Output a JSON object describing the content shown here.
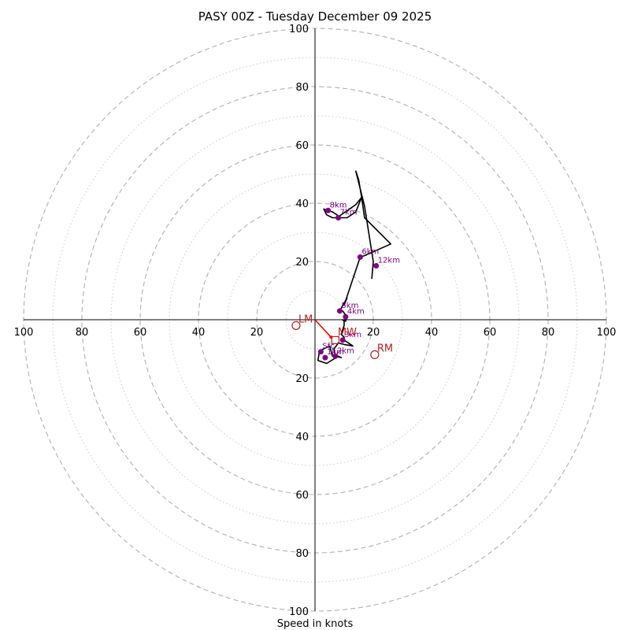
{
  "chart_data": {
    "type": "hodograph",
    "title": "PASY 00Z - Tuesday December 09 2025",
    "xlabel": "Speed in knots",
    "range": 100,
    "ring_major": [
      20,
      40,
      60,
      80,
      100
    ],
    "ring_minor": [
      10,
      30,
      50,
      70,
      90
    ],
    "tick_labels": [
      "20",
      "40",
      "60",
      "80",
      "100"
    ],
    "colors": {
      "trace": "#000000",
      "height_marker": "#800080",
      "storm_motion": "#b22222",
      "mean_wind_vector": "#ff0000",
      "ring": "#b0b0b0",
      "axis": "#000000"
    },
    "trace": [
      [
        8,
        -12.5
      ],
      [
        4,
        -15
      ],
      [
        1,
        -14
      ],
      [
        1.5,
        -11
      ],
      [
        2,
        -10.5
      ],
      [
        5,
        -9
      ],
      [
        6,
        -12.5
      ],
      [
        8,
        -12.5
      ],
      [
        9,
        -13
      ],
      [
        7,
        -12.5
      ],
      [
        6.5,
        -10
      ],
      [
        8,
        -8
      ],
      [
        10,
        -8.5
      ],
      [
        13,
        -9
      ],
      [
        10,
        -7
      ],
      [
        10,
        -6
      ],
      [
        9,
        -5
      ],
      [
        10,
        -2
      ],
      [
        10,
        -0.5
      ],
      [
        9.5,
        0
      ],
      [
        10.5,
        -0.5
      ],
      [
        11,
        1
      ],
      [
        9.5,
        3
      ],
      [
        8.5,
        3
      ],
      [
        9,
        4
      ],
      [
        11,
        7.5
      ],
      [
        10,
        5
      ],
      [
        11,
        8
      ],
      [
        15.5,
        21.5
      ],
      [
        17,
        22
      ],
      [
        26,
        26
      ],
      [
        17,
        35
      ],
      [
        16,
        42
      ],
      [
        14,
        37
      ],
      [
        11,
        35
      ],
      [
        9,
        35
      ],
      [
        6,
        37
      ],
      [
        3,
        38
      ],
      [
        4,
        36
      ],
      [
        6,
        35
      ],
      [
        7.5,
        35
      ],
      [
        14,
        39.5
      ],
      [
        16,
        42
      ],
      [
        15,
        48
      ],
      [
        14,
        51
      ],
      [
        17,
        39
      ],
      [
        20,
        20
      ],
      [
        19.5,
        14
      ]
    ],
    "height_markers": [
      {
        "label": "Sfc",
        "u": 2,
        "v": -11
      },
      {
        "label": "1km",
        "u": 3.5,
        "v": -13
      },
      {
        "label": "2km",
        "u": 7,
        "v": -12.5
      },
      {
        "label": "3km",
        "u": 9.5,
        "v": -7
      },
      {
        "label": "4km",
        "u": 10.5,
        "v": 1
      },
      {
        "label": "5km",
        "u": 8.5,
        "v": 3
      },
      {
        "label": "6km",
        "u": 15.5,
        "v": 21.5
      },
      {
        "label": "7km",
        "u": 8,
        "v": 35
      },
      {
        "label": "8km",
        "u": 4.5,
        "v": 37.5
      },
      {
        "label": "12km",
        "u": 21,
        "v": 18.5
      }
    ],
    "storm_motion": [
      {
        "label": "LM",
        "u": -6.5,
        "v": -2
      },
      {
        "label": "RM",
        "u": 20.5,
        "v": -12
      },
      {
        "label": "MW",
        "u": 7,
        "v": -7
      }
    ],
    "mean_wind_vector": {
      "u": 5.5,
      "v": -6
    }
  }
}
